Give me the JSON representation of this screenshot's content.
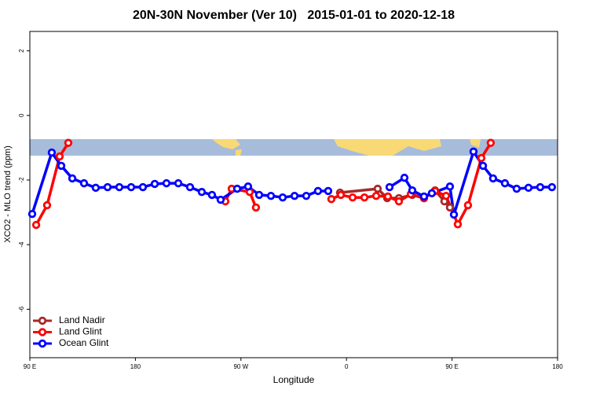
{
  "chart_data": {
    "type": "line",
    "title": "20N-30N November (Ver 10)   2015-01-01 to 2020-12-18",
    "x_label": "Longitude",
    "y_label": "XCO2 - MLO trend (ppm)",
    "xlim": [
      90,
      540
    ],
    "ylim": [
      -7.5,
      2.6
    ],
    "xticks": [
      {
        "value": 90,
        "label": "90 E"
      },
      {
        "value": 180,
        "label": "180"
      },
      {
        "value": 270,
        "label": "90 W"
      },
      {
        "value": 360,
        "label": "0"
      },
      {
        "value": 450,
        "label": "90 E"
      },
      {
        "value": 540,
        "label": "180"
      }
    ],
    "yticks": [
      2,
      0,
      -2,
      -4,
      -6
    ],
    "legend": "bottom-left",
    "series": [
      {
        "name": "Land Nadir",
        "color": "#a52a2a",
        "x": [
          354.5,
          386.6,
          394.7,
          404.7,
          416.1,
          426.1,
          435.5,
          443.5,
          448.2
        ],
        "values": [
          -2.39,
          -2.27,
          -2.56,
          -2.56,
          -2.46,
          -2.56,
          -2.32,
          -2.66,
          -2.85
        ]
      },
      {
        "name": "Land Glint",
        "color": "#ff0000",
        "x": [
          95.4,
          104.7,
          115.4,
          122.8,
          null,
          256.7,
          262.1,
          277.5,
          282.8,
          null,
          347.1,
          355.2,
          365.2,
          375.3,
          385.3,
          395.3,
          404.7,
          414.8,
          426.1,
          435.5,
          444.9,
          454.9,
          463.6,
          475.0,
          483.0
        ],
        "values": [
          -3.39,
          -2.78,
          -1.27,
          -0.85,
          null,
          -2.66,
          -2.27,
          -2.37,
          -2.85,
          null,
          -2.59,
          -2.46,
          -2.54,
          -2.54,
          -2.49,
          -2.51,
          -2.66,
          -2.44,
          -2.56,
          -2.34,
          -2.49,
          -3.37,
          -2.78,
          -1.32,
          -0.85
        ]
      },
      {
        "name": "Ocean Glint",
        "color": "#0000ff",
        "x": [
          92.0,
          108.7,
          116.8,
          126.2,
          136.2,
          146.2,
          156.3,
          166.3,
          176.4,
          186.4,
          196.5,
          206.5,
          216.6,
          226.6,
          236.6,
          245.3,
          252.7,
          266.8,
          276.1,
          285.5,
          295.6,
          305.6,
          315.7,
          325.7,
          335.7,
          344.4,
          null,
          396.7,
          409.4,
          416.1,
          426.1,
          432.8,
          448.2,
          451.6,
          468.3,
          476.4,
          485.0,
          495.1,
          505.1,
          515.2,
          525.2,
          535.2
        ],
        "values": [
          -3.05,
          -1.15,
          -1.56,
          -1.95,
          -2.1,
          -2.24,
          -2.22,
          -2.22,
          -2.22,
          -2.22,
          -2.12,
          -2.1,
          -2.1,
          -2.22,
          -2.37,
          -2.46,
          -2.61,
          -2.27,
          -2.2,
          -2.46,
          -2.49,
          -2.54,
          -2.49,
          -2.49,
          -2.34,
          -2.34,
          null,
          -2.22,
          -1.93,
          -2.32,
          -2.51,
          -2.41,
          -2.2,
          -3.07,
          -1.12,
          -1.56,
          -1.95,
          -2.1,
          -2.27,
          -2.24,
          -2.22,
          -2.22
        ]
      }
    ]
  }
}
